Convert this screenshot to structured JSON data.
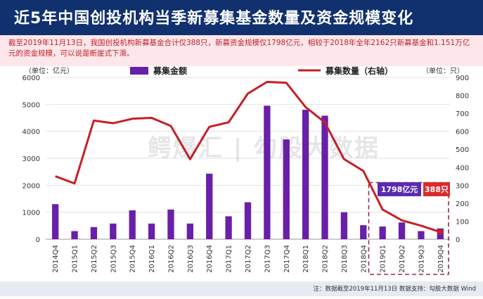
{
  "header": {
    "title": "近5年中国创投机构当季新募集基金数量及资金规模变化"
  },
  "subtitle": "截至2019年11月13日，我国创投机构新募基金合计仅388只，新募资金规模仅1798亿元，相较于2018年全年2162只新募基金和1.151万亿元的资金规模，可以说是断崖式下滑。",
  "watermark": "鳄爆汇 | 勾股大数据",
  "footnote": "注：数据截至2019年11月13日     数据支持：勾股大数据 Wind",
  "chart_data": {
    "type": "bar",
    "categories": [
      "2014Q4",
      "2015Q1",
      "2015Q2",
      "2015Q3",
      "2015Q4",
      "2016Q1",
      "2016Q2",
      "2016Q3",
      "2016Q4",
      "2017Q1",
      "2017Q2",
      "2017Q3",
      "2017Q4",
      "2018Q1",
      "2018Q2",
      "2018Q3",
      "2018Q4",
      "2019Q1",
      "2019Q2",
      "2019Q3",
      "2019Q4"
    ],
    "series": [
      {
        "name": "募集金额",
        "type": "bar",
        "axis": "left",
        "color": "#6a1fa8",
        "values": [
          1300,
          300,
          450,
          580,
          1070,
          580,
          1100,
          580,
          2430,
          850,
          1370,
          4950,
          3700,
          4800,
          4580,
          1000,
          520,
          470,
          620,
          300,
          400
        ]
      },
      {
        "name": "募集数量（右轴）",
        "type": "line",
        "axis": "right",
        "color": "#c81e28",
        "values": [
          350,
          310,
          660,
          645,
          670,
          675,
          630,
          445,
          625,
          650,
          810,
          875,
          870,
          735,
          650,
          445,
          380,
          165,
          105,
          75,
          40
        ]
      }
    ],
    "left_axis": {
      "unit_label": "（单位：亿元）",
      "ylim": [
        0,
        6000
      ],
      "ticks": [
        0,
        1000,
        2000,
        3000,
        4000,
        5000,
        6000
      ]
    },
    "right_axis": {
      "unit_label": "（单位：只）",
      "ylim": [
        0,
        900
      ],
      "ticks": [
        0,
        100,
        200,
        300,
        400,
        500,
        600,
        700,
        800,
        900
      ]
    },
    "legend": {
      "placement": "top",
      "items": [
        "募集金额",
        "募集数量（右轴）"
      ]
    },
    "annotations": [
      {
        "label": "1798亿元",
        "color": "#5b2bb0"
      },
      {
        "label": "388只",
        "color": "#d92b2b"
      }
    ],
    "highlight_range": [
      "2019Q1",
      "2019Q4"
    ]
  }
}
